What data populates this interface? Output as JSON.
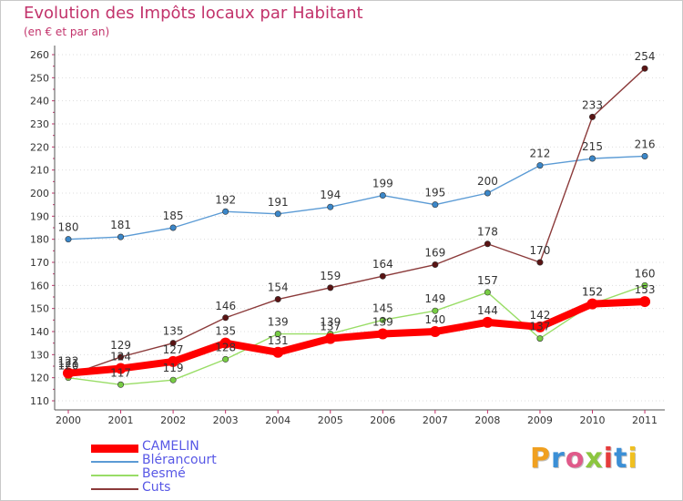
{
  "header": {
    "title": "Evolution des Impôts locaux par Habitant",
    "subtitle": "(en € et par an)"
  },
  "colors": {
    "title": "#c2336b",
    "axis_text": "#333333",
    "grid": "#dddddd",
    "legend_text": "#5858e6",
    "logo_letters": [
      "#f0a020",
      "#3b8fd6",
      "#e05a8a",
      "#8cc63f",
      "#e53b3b",
      "#3b8fd6",
      "#f0c020"
    ]
  },
  "logo": {
    "text": "Proxiti"
  },
  "chart_data": {
    "type": "line",
    "x": [
      "2000",
      "2001",
      "2002",
      "2003",
      "2004",
      "2005",
      "2006",
      "2007",
      "2008",
      "2009",
      "2010",
      "2011"
    ],
    "ylim": [
      110,
      260
    ],
    "yticks": [
      110,
      120,
      130,
      140,
      150,
      160,
      170,
      180,
      190,
      200,
      210,
      220,
      230,
      240,
      250,
      260
    ],
    "grid": "horizontal dotted",
    "legend_position": "bottom-left",
    "series": [
      {
        "name": "CAMELIN",
        "color": "#ff0000",
        "marker_color": "#ff0000",
        "emphasis": true,
        "values": [
          122,
          124,
          127,
          135,
          131,
          137,
          139,
          140,
          144,
          142,
          152,
          153
        ]
      },
      {
        "name": "Blérancourt",
        "color": "#5b9bd5",
        "marker_color": "#3b87c9",
        "emphasis": false,
        "values": [
          180,
          181,
          185,
          192,
          191,
          194,
          199,
          195,
          200,
          212,
          215,
          216
        ]
      },
      {
        "name": "Besmé",
        "color": "#99dd66",
        "marker_color": "#77cc44",
        "emphasis": false,
        "values": [
          120,
          117,
          119,
          128,
          139,
          139,
          145,
          149,
          157,
          137,
          152,
          160
        ]
      },
      {
        "name": "Cuts",
        "color": "#8b3a3a",
        "marker_color": "#5a1414",
        "emphasis": false,
        "values": [
          121,
          129,
          135,
          146,
          154,
          159,
          164,
          169,
          178,
          170,
          233,
          254
        ]
      }
    ]
  }
}
